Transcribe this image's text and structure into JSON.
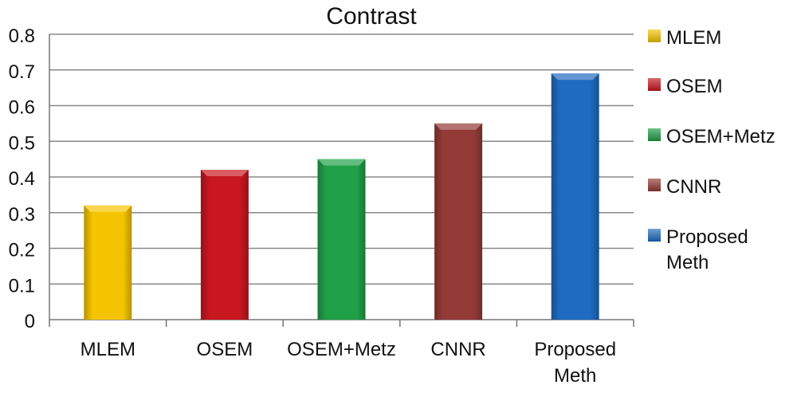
{
  "chart_data": {
    "type": "bar",
    "title": "Contrast",
    "xlabel": "",
    "ylabel": "",
    "categories": [
      "MLEM",
      "OSEM",
      "OSEM+Metz",
      "CNNR",
      "Proposed Meth"
    ],
    "category_lines": [
      [
        "MLEM"
      ],
      [
        "OSEM"
      ],
      [
        "OSEM+Metz"
      ],
      [
        "CNNR"
      ],
      [
        "Proposed",
        "Meth"
      ]
    ],
    "values": [
      0.32,
      0.42,
      0.45,
      0.55,
      0.69
    ],
    "colors": [
      "#f5c400",
      "#c8171f",
      "#20a046",
      "#943a36",
      "#1e6bc0"
    ],
    "ylim": [
      0,
      0.8
    ],
    "yticks": [
      "0",
      "0.1",
      "0.2",
      "0.3",
      "0.4",
      "0.5",
      "0.6",
      "0.7",
      "0.8"
    ],
    "grid": true,
    "legend_position": "right",
    "legend": [
      {
        "lines": [
          "MLEM"
        ],
        "color": "#f5c400"
      },
      {
        "lines": [
          "OSEM"
        ],
        "color": "#c8171f"
      },
      {
        "lines": [
          "OSEM+Metz"
        ],
        "color": "#20a046"
      },
      {
        "lines": [
          "CNNR"
        ],
        "color": "#943a36"
      },
      {
        "lines": [
          "Proposed",
          "Meth"
        ],
        "color": "#1e6bc0"
      }
    ]
  }
}
